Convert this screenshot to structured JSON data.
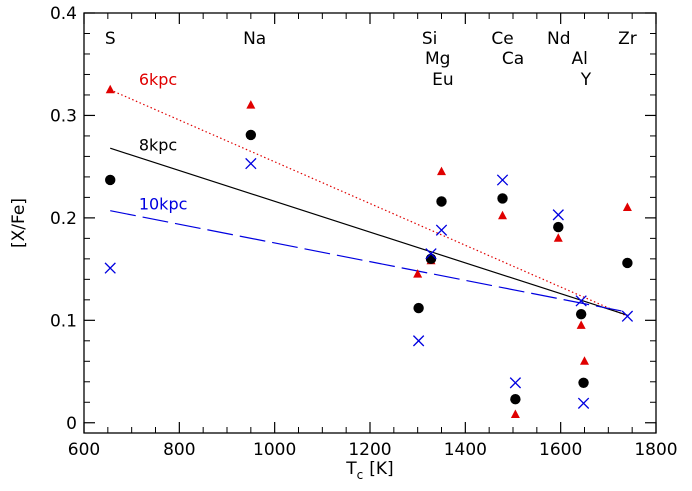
{
  "chart_data": {
    "type": "scatter",
    "title": "",
    "xlabel": "T",
    "xlabel_sub": "c",
    "xlabel_unit": "[K]",
    "ylabel": "[X/Fe]",
    "xlim": [
      600,
      1800
    ],
    "ylim": [
      -0.01,
      0.4
    ],
    "x_ticks": [
      600,
      800,
      1000,
      1200,
      1400,
      1600,
      1800
    ],
    "y_ticks": [
      0,
      0.1,
      0.2,
      0.3,
      0.4
    ],
    "y_tick_labels": [
      "0",
      "0.1",
      "0.2",
      "0.3",
      "0.4"
    ],
    "grid": false,
    "element_labels": [
      {
        "text": "S",
        "x": 655,
        "row": 0
      },
      {
        "text": "Na",
        "x": 958,
        "row": 0
      },
      {
        "text": "Si",
        "x": 1325,
        "row": 0
      },
      {
        "text": "Mg",
        "x": 1342,
        "row": 1
      },
      {
        "text": "Eu",
        "x": 1353,
        "row": 2
      },
      {
        "text": "Ce",
        "x": 1478,
        "row": 0
      },
      {
        "text": "Ca",
        "x": 1500,
        "row": 1
      },
      {
        "text": "Nd",
        "x": 1596,
        "row": 0
      },
      {
        "text": "Al",
        "x": 1640,
        "row": 1
      },
      {
        "text": "Y",
        "x": 1653,
        "row": 2
      },
      {
        "text": "Zr",
        "x": 1740,
        "row": 0
      }
    ],
    "series": [
      {
        "name": "6kpc",
        "color": "#e00000",
        "marker": "triangle",
        "points": [
          [
            655,
            0.325
          ],
          [
            950,
            0.31
          ],
          [
            1300,
            0.145
          ],
          [
            1328,
            0.158
          ],
          [
            1350,
            0.245
          ],
          [
            1478,
            0.202
          ],
          [
            1505,
            0.008
          ],
          [
            1595,
            0.18
          ],
          [
            1643,
            0.095
          ],
          [
            1650,
            0.06
          ],
          [
            1740,
            0.21
          ]
        ]
      },
      {
        "name": "8kpc",
        "color": "#000000",
        "marker": "circle",
        "points": [
          [
            655,
            0.237
          ],
          [
            950,
            0.281
          ],
          [
            1302,
            0.112
          ],
          [
            1328,
            0.16
          ],
          [
            1350,
            0.216
          ],
          [
            1478,
            0.219
          ],
          [
            1505,
            0.023
          ],
          [
            1595,
            0.191
          ],
          [
            1643,
            0.106
          ],
          [
            1648,
            0.039
          ],
          [
            1740,
            0.156
          ]
        ]
      },
      {
        "name": "10kpc",
        "color": "#0000e0",
        "marker": "cross",
        "points": [
          [
            655,
            0.151
          ],
          [
            950,
            0.253
          ],
          [
            1302,
            0.08
          ],
          [
            1328,
            0.165
          ],
          [
            1350,
            0.188
          ],
          [
            1478,
            0.237
          ],
          [
            1505,
            0.039
          ],
          [
            1595,
            0.203
          ],
          [
            1643,
            0.119
          ],
          [
            1648,
            0.019
          ],
          [
            1740,
            0.104
          ]
        ]
      }
    ],
    "trend_lines": [
      {
        "name": "6kpc",
        "color": "#e00000",
        "style": "dotted",
        "from": [
          655,
          0.325
        ],
        "to": [
          1740,
          0.104
        ],
        "label_at": [
          715,
          0.328
        ]
      },
      {
        "name": "8kpc",
        "color": "#000000",
        "style": "solid",
        "from": [
          655,
          0.268
        ],
        "to": [
          1740,
          0.105
        ],
        "label_at": [
          715,
          0.264
        ]
      },
      {
        "name": "10kpc",
        "color": "#0000e0",
        "style": "dashed",
        "from": [
          655,
          0.207
        ],
        "to": [
          1740,
          0.108
        ],
        "label_at": [
          715,
          0.206
        ]
      }
    ]
  }
}
